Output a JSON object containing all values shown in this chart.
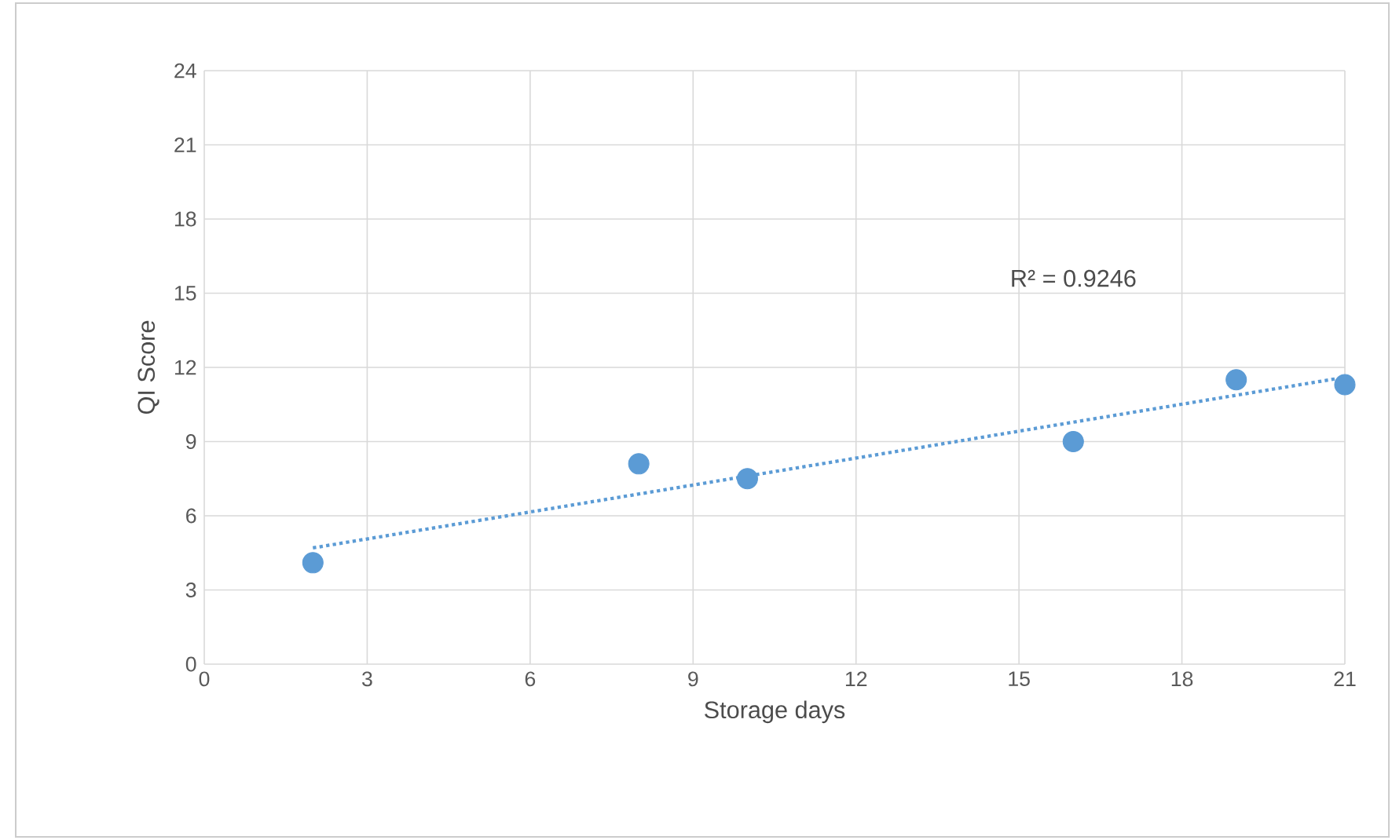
{
  "chart_data": {
    "type": "scatter",
    "xlabel": "Storage days",
    "ylabel": "QI Score",
    "xlim": [
      0,
      21
    ],
    "xticks": [
      0,
      3,
      6,
      9,
      12,
      15,
      18,
      21
    ],
    "ylim": [
      0,
      24
    ],
    "yticks": [
      0,
      3,
      6,
      9,
      12,
      15,
      18,
      21,
      24
    ],
    "grid": true,
    "annotations": [
      "R² = 0.9246"
    ],
    "series": [
      {
        "color": "#5b9bd5",
        "marker": "circle",
        "x": [
          2,
          8,
          10,
          16,
          19,
          21
        ],
        "values": [
          4.1,
          8.1,
          7.5,
          9.0,
          11.5,
          11.3
        ]
      },
      {
        "type": "line",
        "color": "#5b9bd5",
        "line_style": "dotted",
        "x": [
          2,
          21
        ],
        "values": [
          4.7,
          11.6
        ]
      }
    ]
  }
}
